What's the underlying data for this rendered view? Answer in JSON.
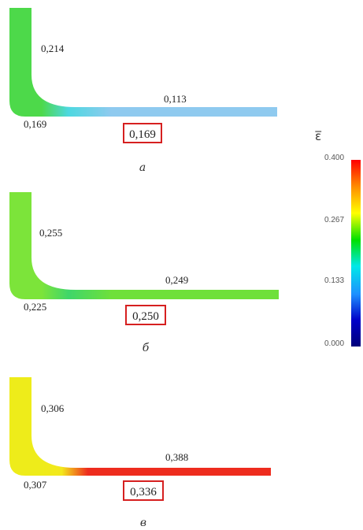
{
  "panels": [
    {
      "vertical_label": "0,214",
      "horizontal_label": "0,113",
      "corner_label": "0,169",
      "highlight_label": "0,169",
      "caption": "а",
      "colors": {
        "vertical": "#4dd94a",
        "corner": "#4dd8e0",
        "horizontal": "#8fcaef"
      }
    },
    {
      "vertical_label": "0,255",
      "horizontal_label": "0,249",
      "corner_label": "0,225",
      "highlight_label": "0,250",
      "caption": "б",
      "colors": {
        "vertical": "#7ce43a",
        "corner": "#3fd66a",
        "horizontal": "#6fe03a"
      }
    },
    {
      "vertical_label": "0,306",
      "horizontal_label": "0,388",
      "corner_label": "0,307",
      "highlight_label": "0,336",
      "caption": "в",
      "colors": {
        "vertical": "#eeec1a",
        "corner": "#f3e81c",
        "horizontal": "#ee2c1e"
      }
    }
  ],
  "colorbar": {
    "symbol": "ε̅",
    "ticks": [
      "0.400",
      "0.267",
      "0.133",
      "0.000"
    ],
    "tick_values": [
      0.4,
      0.267,
      0.133,
      0.0
    ],
    "min": 0.0,
    "max": 0.4,
    "colors": [
      "#ff0000",
      "#ff8c00",
      "#ffff00",
      "#00e000",
      "#00e8e8",
      "#1e90ff",
      "#0000c8",
      "#00007a"
    ]
  },
  "highlight_color": "#d62020"
}
